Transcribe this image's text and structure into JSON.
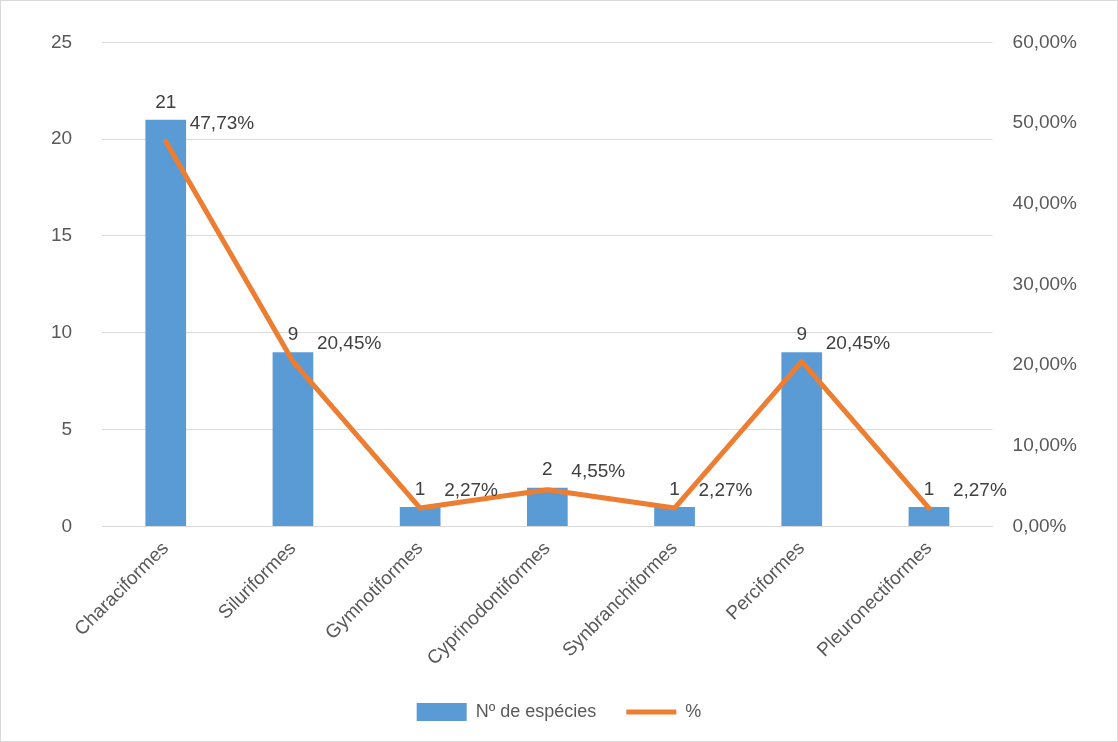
{
  "chart_data": {
    "type": "bar",
    "categories": [
      "Characiformes",
      "Siluriformes",
      "Gymnotiformes",
      "Cyprinodontiformes",
      "Synbranchiformes",
      "Perciformes",
      "Pleuronectiformes"
    ],
    "series": [
      {
        "name": "Nº de espécies",
        "color": "#5b9bd5",
        "values": [
          21,
          9,
          1,
          2,
          1,
          9,
          1
        ],
        "value_labels": [
          "21",
          "9",
          "1",
          "2",
          "1",
          "9",
          "1"
        ]
      },
      {
        "name": "%",
        "type": "line",
        "axis": "y2",
        "color": "#ed7d31",
        "values": [
          47.73,
          20.45,
          2.27,
          4.55,
          2.27,
          20.45,
          2.27
        ],
        "value_labels": [
          "47,73%",
          "20,45%",
          "2,27%",
          "4,55%",
          "2,27%",
          "20,45%",
          "2,27%"
        ]
      }
    ],
    "ylim": [
      0,
      25
    ],
    "yticks": [
      0,
      5,
      10,
      15,
      20,
      25
    ],
    "y2lim": [
      0,
      60
    ],
    "y2ticks": [
      {
        "value": 0,
        "label": "0,00%"
      },
      {
        "value": 10,
        "label": "10,00%"
      },
      {
        "value": 20,
        "label": "20,00%"
      },
      {
        "value": 30,
        "label": "30,00%"
      },
      {
        "value": 40,
        "label": "40,00%"
      },
      {
        "value": 50,
        "label": "50,00%"
      },
      {
        "value": 60,
        "label": "60,00%"
      }
    ],
    "grid": "y",
    "legend": "bottom",
    "marker": "none",
    "line_style": "solid"
  }
}
